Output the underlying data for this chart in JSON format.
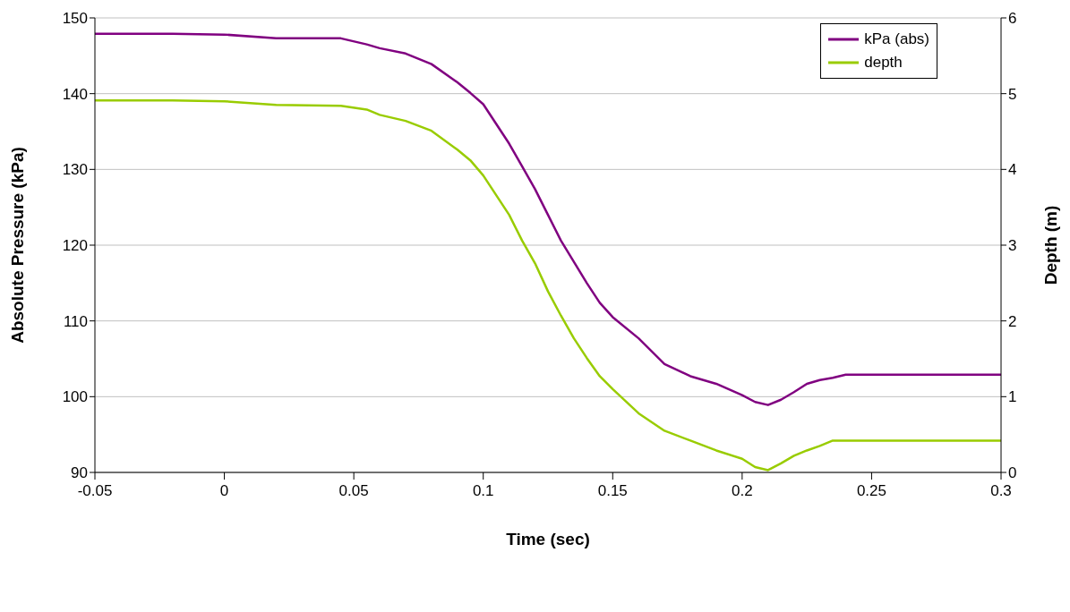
{
  "chart_data": {
    "type": "line",
    "xlabel": "Time (sec)",
    "ylabel": "Absolute Pressure (kPa)",
    "y2label": "Depth (m)",
    "x": [
      -0.05,
      -0.02,
      0,
      0.02,
      0.045,
      0.055,
      0.06,
      0.07,
      0.08,
      0.09,
      0.095,
      0.1,
      0.105,
      0.11,
      0.115,
      0.12,
      0.125,
      0.13,
      0.135,
      0.14,
      0.145,
      0.15,
      0.16,
      0.17,
      0.18,
      0.19,
      0.2,
      0.205,
      0.21,
      0.215,
      0.22,
      0.225,
      0.23,
      0.235,
      0.24,
      0.3
    ],
    "series": [
      {
        "name": "kPa (abs)",
        "color": "#800080",
        "values": [
          147.9,
          147.9,
          147.8,
          147.3,
          147.3,
          146.5,
          146,
          145.3,
          143.9,
          141.5,
          140.1,
          138.6,
          136,
          133.4,
          130.4,
          127.4,
          124,
          120.6,
          117.8,
          115,
          112.4,
          110.5,
          107.7,
          104.3,
          102.7,
          101.7,
          100.2,
          99.3,
          98.9,
          99.6,
          100.6,
          101.7,
          102.2,
          102.5,
          102.9,
          102.9
        ]
      },
      {
        "name": "depth",
        "color": "#99cc00",
        "axis": "y2",
        "values": [
          4.91,
          4.91,
          4.9,
          4.85,
          4.84,
          4.79,
          4.72,
          4.64,
          4.51,
          4.26,
          4.12,
          3.92,
          3.66,
          3.4,
          3.06,
          2.76,
          2.39,
          2.07,
          1.77,
          1.51,
          1.27,
          1.1,
          0.78,
          0.55,
          0.42,
          0.29,
          0.18,
          0.07,
          0.03,
          0.12,
          0.22,
          0.29,
          0.35,
          0.42,
          0.42,
          0.42
        ]
      }
    ],
    "xlim": [
      -0.05,
      0.3
    ],
    "xticks": [
      -0.05,
      0,
      0.05,
      0.1,
      0.15,
      0.2,
      0.25,
      0.3
    ],
    "ylim": [
      90,
      150
    ],
    "yticks": [
      90,
      100,
      110,
      120,
      130,
      140,
      150
    ],
    "y2lim": [
      0,
      6
    ],
    "y2ticks": [
      0,
      1,
      2,
      3,
      4,
      5,
      6
    ],
    "grid": "y",
    "legend": "top right"
  }
}
